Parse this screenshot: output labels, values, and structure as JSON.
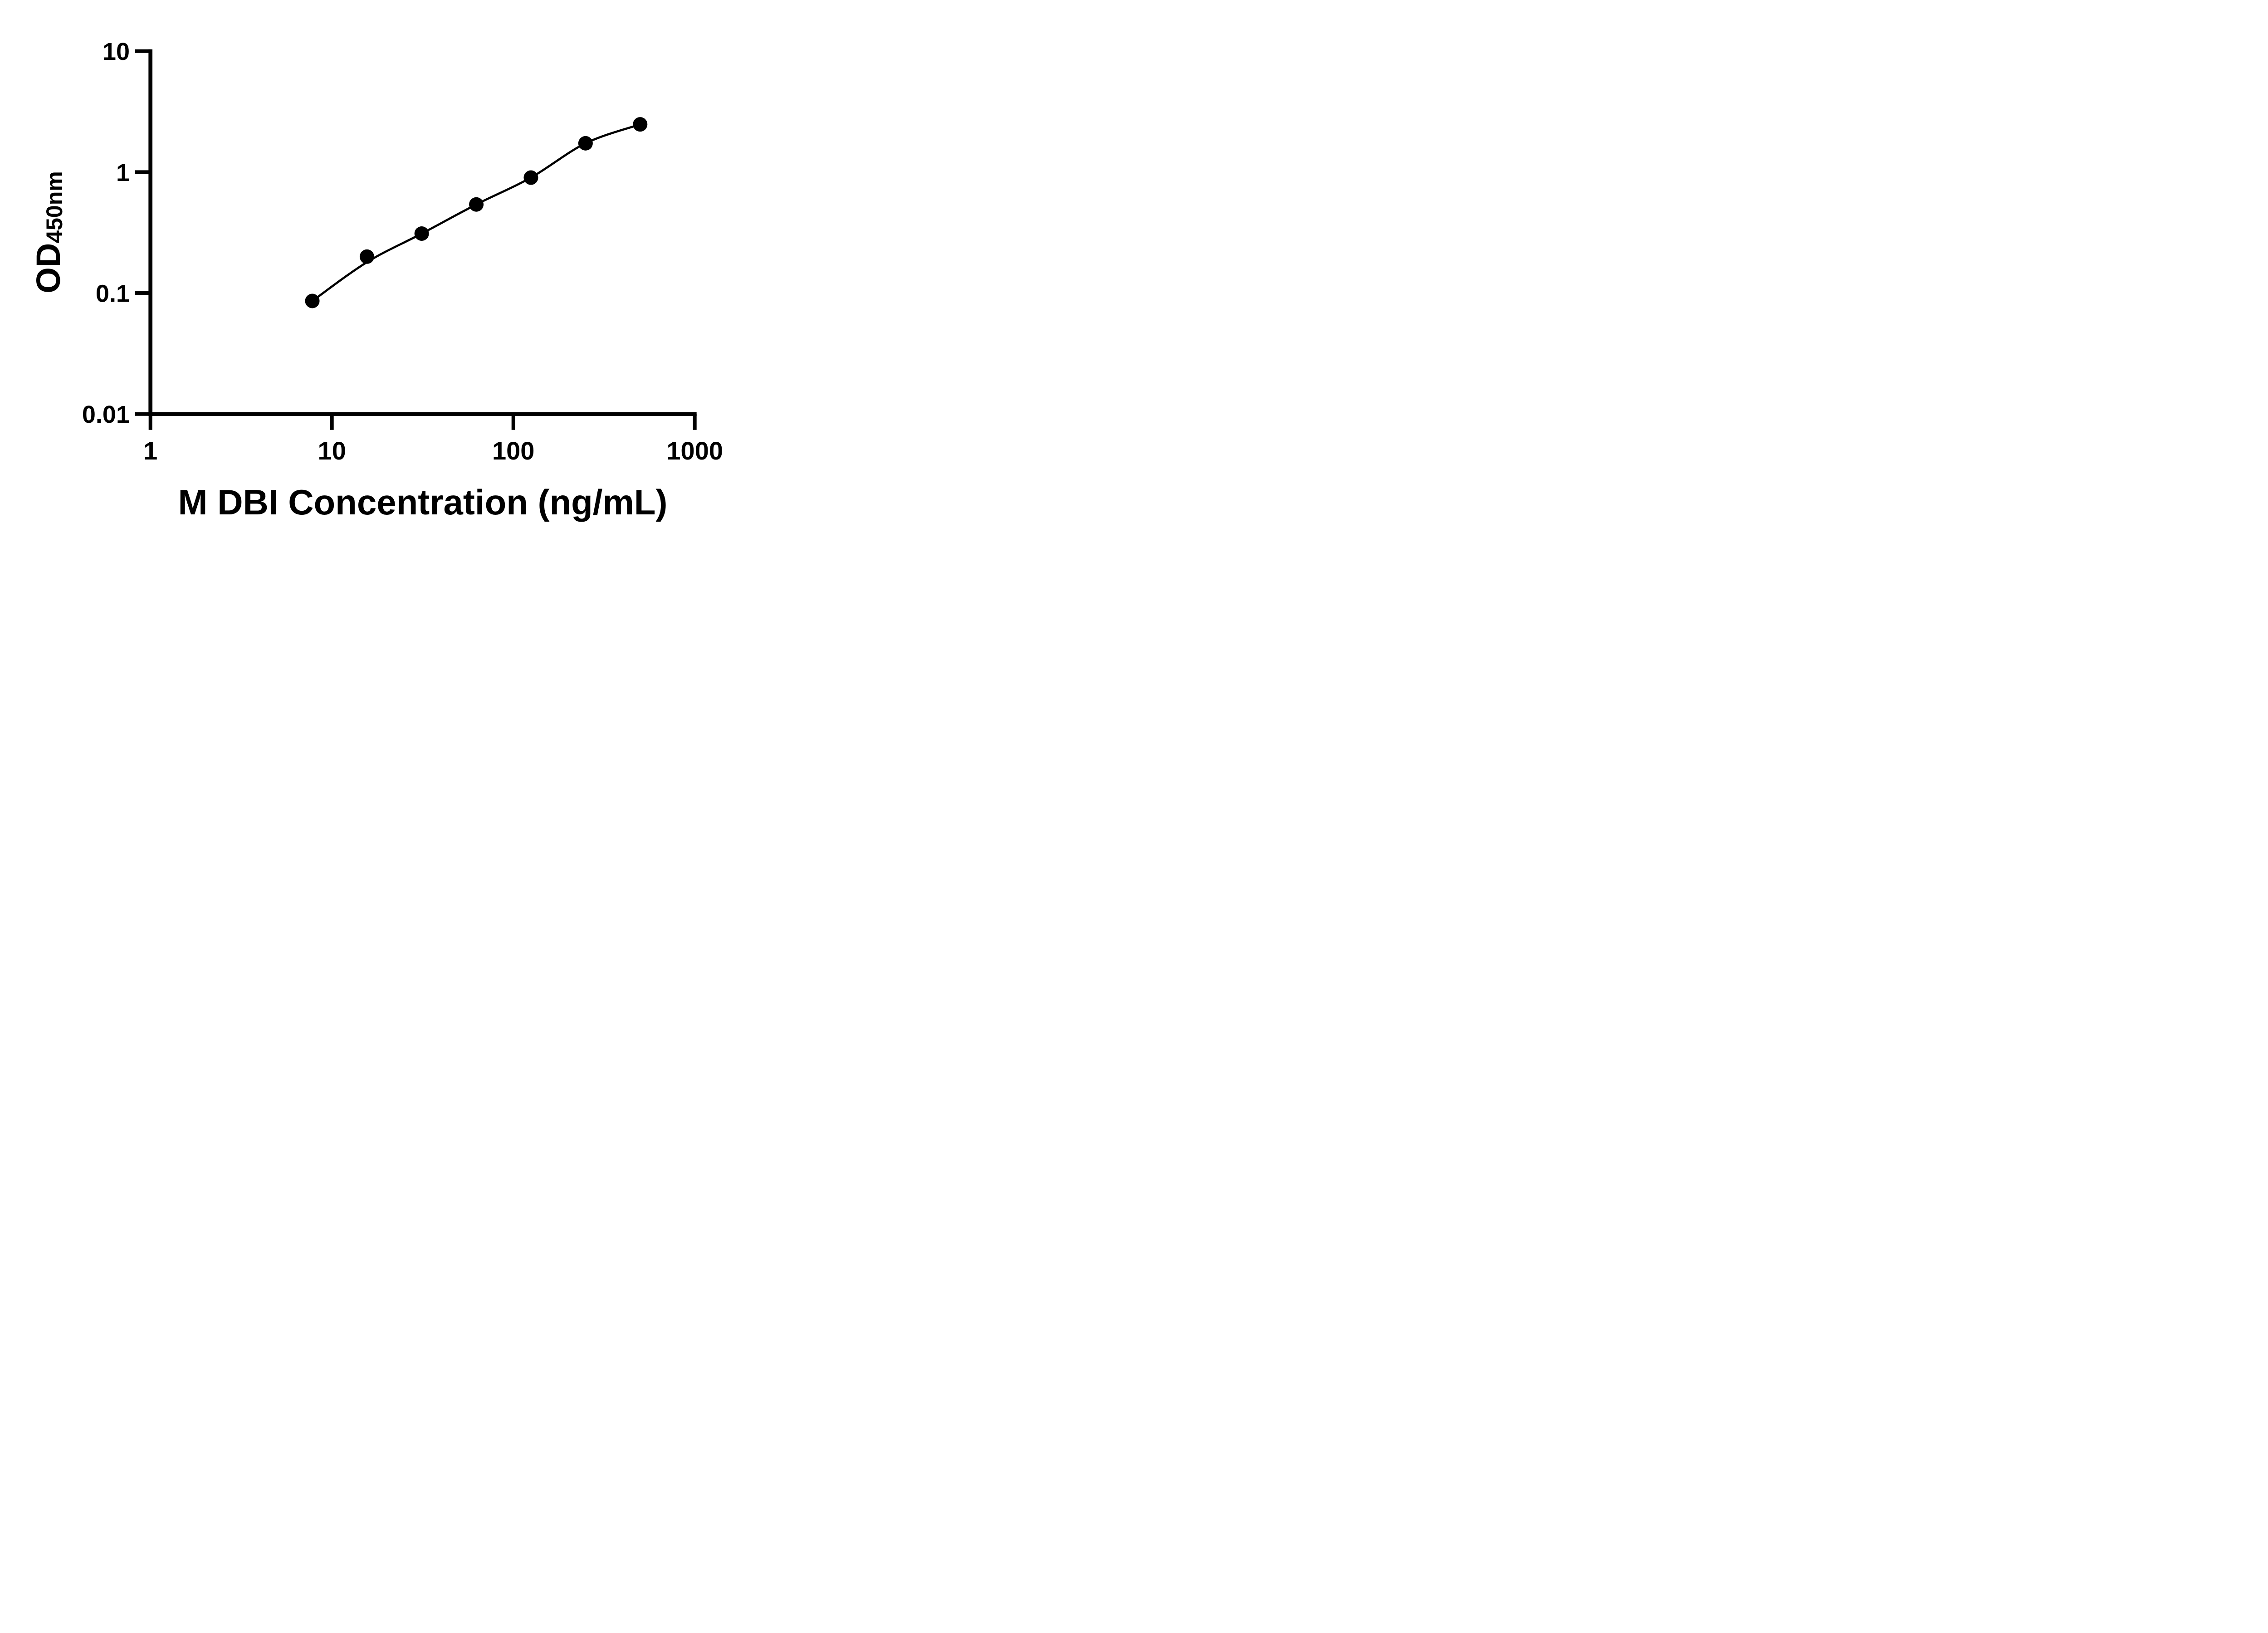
{
  "figure": {
    "background_color": "#ffffff",
    "ink_color": "#000000"
  },
  "chart_data": {
    "type": "scatter",
    "title": "",
    "xlabel": "M DBI Concentration (ng/mL)",
    "ylabel": "OD450nm",
    "ylabel_main": "OD",
    "ylabel_subscript": "450nm",
    "x_scale": "log10",
    "y_scale": "log10",
    "xlim": [
      1,
      1000
    ],
    "ylim": [
      0.01,
      10
    ],
    "x_ticks": {
      "values": [
        1,
        10,
        100,
        1000
      ],
      "labels": [
        "1",
        "10",
        "100",
        "1000"
      ]
    },
    "y_ticks": {
      "values": [
        10,
        1,
        0.1,
        0.01
      ],
      "labels": [
        "10",
        "1",
        "0.1",
        "0.01"
      ]
    },
    "grid": false,
    "legend_position": "none",
    "marker": "filled-circle",
    "marker_color": "#000000",
    "line_color": "#000000",
    "points": {
      "x": [
        7.8,
        15.6,
        31.25,
        62.5,
        125,
        250,
        500
      ],
      "y": [
        0.086,
        0.2,
        0.31,
        0.54,
        0.9,
        1.73,
        2.48
      ]
    },
    "fitted_curve": {
      "x": [
        7.8,
        15.6,
        31.25,
        62.5,
        125,
        250,
        500
      ],
      "y": [
        0.086,
        0.18,
        0.31,
        0.54,
        0.9,
        1.73,
        2.48
      ]
    }
  }
}
